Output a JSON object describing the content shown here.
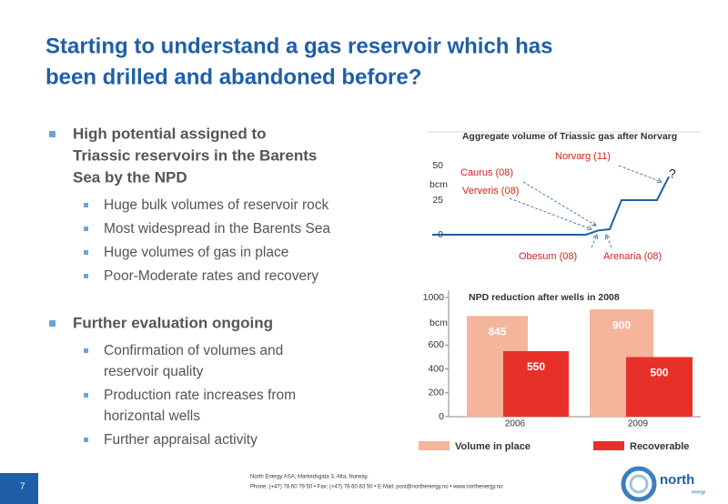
{
  "title": [
    "Starting to understand a gas reservoir which has",
    "been drilled and abandoned before?"
  ],
  "bullets": [
    {
      "text": [
        "High potential assigned to",
        "Triassic reservoirs in the Barents",
        "Sea by the NPD"
      ],
      "sub": [
        [
          "Huge bulk volumes of reservoir rock"
        ],
        [
          "Most widespread in the Barents Sea"
        ],
        [
          "Huge volumes of gas in place"
        ],
        [
          "Poor-Moderate rates and recovery"
        ]
      ]
    },
    {
      "text": [
        "Further evaluation ongoing"
      ],
      "sub": [
        [
          "Confirmation of volumes and",
          "reservoir quality"
        ],
        [
          "Production rate increases from",
          "horizontal wells"
        ],
        [
          "Further appraisal activity"
        ]
      ]
    }
  ],
  "page_number": "7",
  "footer": [
    "North Energy ASA, Markedsgata 3, Alta, Norway.",
    "Phone: (+47) 78 60 79 50 • Fax: (+47) 78 60 83 50 • E-Mail: post@northenergy.no • www.northenergy.no"
  ],
  "logo": {
    "name": "north",
    "sub": "energy"
  },
  "chart_data": [
    {
      "type": "line",
      "title": "Aggregate volume  of Triassic gas after Norvarg",
      "y_label": "bcm",
      "categories": [
        null,
        null,
        null,
        null,
        null,
        null,
        null,
        null,
        null,
        null,
        null,
        null,
        null,
        null,
        null,
        null,
        null,
        null,
        null,
        null,
        null
      ],
      "values": [
        0,
        0,
        0,
        0,
        0,
        0,
        0,
        0,
        0,
        0,
        0,
        0,
        0,
        0,
        3,
        4,
        25,
        25,
        25,
        25,
        42
      ],
      "color": "#1f5fa8",
      "ylim": [
        0,
        50
      ],
      "yticks": [
        0,
        25,
        50
      ],
      "annotations": [
        "Norvarg (11)",
        "?",
        "Caurus (08)",
        "Ververis (08)",
        "Obesum (08)",
        "Arenaria (08)"
      ]
    },
    {
      "type": "bar",
      "title": "NPD reduction after wells in 2008",
      "y_label": "bcm",
      "categories": [
        "2006",
        "2009"
      ],
      "series": [
        {
          "name": "Volume in place",
          "color": "#f5b49c",
          "values": [
            845,
            900
          ]
        },
        {
          "name": "Recoverable",
          "color": "#e8302a",
          "values": [
            550,
            500
          ]
        }
      ],
      "ylim": [
        0,
        1000
      ],
      "yticks": [
        0,
        200,
        400,
        600,
        1000
      ]
    }
  ]
}
